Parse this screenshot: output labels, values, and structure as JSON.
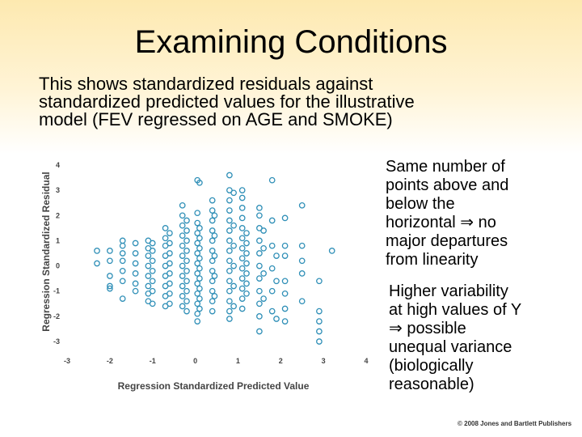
{
  "slide": {
    "title": "Examining Conditions",
    "intro_lines": [
      "This shows standardized residuals against",
      "standardized predicted values for the illustrative",
      "model (FEV regressed on AGE and SMOKE)"
    ],
    "note1_lines": [
      "Same number of",
      "points above and",
      "below the",
      "horizontal ⇒ no",
      "major departures",
      "from linearity"
    ],
    "note2_lines": [
      "Higher variability",
      "at high values of Y",
      "⇒ possible",
      "unequal variance",
      "(biologically",
      "reasonable)"
    ],
    "copyright": "© 2008 Jones and Bartlett Publishers"
  },
  "chart_data": {
    "type": "scatter",
    "xlabel": "Regression Standardized Predicted Value",
    "ylabel": "Regression Standardized Residual",
    "xlim": [
      -3,
      4
    ],
    "ylim": [
      -3,
      4
    ],
    "xticks": [
      -3,
      -2,
      -1,
      0,
      1,
      2,
      3,
      4
    ],
    "yticks": [
      -3,
      -2,
      -1,
      0,
      1,
      2,
      3,
      4
    ],
    "marker_color": "#2f8fb7",
    "points": [
      [
        -2.3,
        0.6
      ],
      [
        -2.3,
        0.1
      ],
      [
        -2.0,
        0.6
      ],
      [
        -2.0,
        0.2
      ],
      [
        -2.0,
        -0.4
      ],
      [
        -2.0,
        -0.8
      ],
      [
        -2.0,
        -0.9
      ],
      [
        -1.7,
        1.0
      ],
      [
        -1.7,
        0.8
      ],
      [
        -1.7,
        0.5
      ],
      [
        -1.7,
        0.2
      ],
      [
        -1.7,
        -0.2
      ],
      [
        -1.7,
        -0.6
      ],
      [
        -1.7,
        -1.3
      ],
      [
        -1.4,
        0.9
      ],
      [
        -1.4,
        0.5
      ],
      [
        -1.4,
        0.1
      ],
      [
        -1.4,
        -0.3
      ],
      [
        -1.4,
        -0.7
      ],
      [
        -1.4,
        -1.0
      ],
      [
        -1.1,
        1.0
      ],
      [
        -1.1,
        0.7
      ],
      [
        -1.1,
        0.4
      ],
      [
        -1.1,
        0.0
      ],
      [
        -1.1,
        -0.4
      ],
      [
        -1.1,
        -0.8
      ],
      [
        -1.1,
        -1.1
      ],
      [
        -1.1,
        -1.4
      ],
      [
        -1.0,
        0.9
      ],
      [
        -1.0,
        0.6
      ],
      [
        -1.0,
        0.2
      ],
      [
        -1.0,
        -0.2
      ],
      [
        -1.0,
        -0.6
      ],
      [
        -1.0,
        -1.0
      ],
      [
        -1.0,
        -1.5
      ],
      [
        -0.7,
        1.5
      ],
      [
        -0.7,
        1.1
      ],
      [
        -0.7,
        0.8
      ],
      [
        -0.7,
        0.4
      ],
      [
        -0.7,
        0.0
      ],
      [
        -0.7,
        -0.4
      ],
      [
        -0.7,
        -0.8
      ],
      [
        -0.7,
        -1.2
      ],
      [
        -0.7,
        -1.6
      ],
      [
        -0.6,
        1.3
      ],
      [
        -0.6,
        0.9
      ],
      [
        -0.6,
        0.5
      ],
      [
        -0.6,
        0.1
      ],
      [
        -0.6,
        -0.3
      ],
      [
        -0.6,
        -0.7
      ],
      [
        -0.6,
        -1.1
      ],
      [
        -0.6,
        -1.5
      ],
      [
        -0.3,
        2.4
      ],
      [
        -0.3,
        2.0
      ],
      [
        -0.3,
        1.6
      ],
      [
        -0.3,
        1.2
      ],
      [
        -0.3,
        0.8
      ],
      [
        -0.3,
        0.4
      ],
      [
        -0.3,
        0.0
      ],
      [
        -0.3,
        -0.4
      ],
      [
        -0.3,
        -0.8
      ],
      [
        -0.3,
        -1.2
      ],
      [
        -0.3,
        -1.6
      ],
      [
        -0.2,
        1.8
      ],
      [
        -0.2,
        1.4
      ],
      [
        -0.2,
        1.0
      ],
      [
        -0.2,
        0.6
      ],
      [
        -0.2,
        0.2
      ],
      [
        -0.2,
        -0.2
      ],
      [
        -0.2,
        -0.6
      ],
      [
        -0.2,
        -1.0
      ],
      [
        -0.2,
        -1.4
      ],
      [
        -0.2,
        -1.8
      ],
      [
        0.05,
        3.4
      ],
      [
        0.05,
        2.1
      ],
      [
        0.05,
        1.7
      ],
      [
        0.05,
        1.3
      ],
      [
        0.05,
        0.9
      ],
      [
        0.05,
        0.5
      ],
      [
        0.05,
        0.1
      ],
      [
        0.05,
        -0.3
      ],
      [
        0.05,
        -0.7
      ],
      [
        0.05,
        -1.1
      ],
      [
        0.05,
        -1.5
      ],
      [
        0.05,
        -1.9
      ],
      [
        0.05,
        -2.2
      ],
      [
        0.1,
        3.3
      ],
      [
        0.1,
        1.5
      ],
      [
        0.1,
        1.1
      ],
      [
        0.1,
        0.7
      ],
      [
        0.1,
        0.3
      ],
      [
        0.1,
        -0.1
      ],
      [
        0.1,
        -0.5
      ],
      [
        0.1,
        -0.9
      ],
      [
        0.1,
        -1.3
      ],
      [
        0.1,
        -1.7
      ],
      [
        0.4,
        2.6
      ],
      [
        0.4,
        2.2
      ],
      [
        0.4,
        1.8
      ],
      [
        0.4,
        1.4
      ],
      [
        0.4,
        1.0
      ],
      [
        0.4,
        0.6
      ],
      [
        0.4,
        0.2
      ],
      [
        0.4,
        -0.2
      ],
      [
        0.4,
        -0.6
      ],
      [
        0.4,
        -1.0
      ],
      [
        0.4,
        -1.4
      ],
      [
        0.4,
        -1.8
      ],
      [
        0.45,
        2.0
      ],
      [
        0.45,
        1.2
      ],
      [
        0.45,
        0.4
      ],
      [
        0.45,
        -0.4
      ],
      [
        0.45,
        -1.2
      ],
      [
        0.8,
        3.6
      ],
      [
        0.8,
        3.0
      ],
      [
        0.8,
        2.6
      ],
      [
        0.8,
        2.2
      ],
      [
        0.8,
        1.8
      ],
      [
        0.8,
        1.4
      ],
      [
        0.8,
        1.0
      ],
      [
        0.8,
        0.6
      ],
      [
        0.8,
        0.2
      ],
      [
        0.8,
        -0.2
      ],
      [
        0.8,
        -0.6
      ],
      [
        0.8,
        -1.0
      ],
      [
        0.8,
        -1.4
      ],
      [
        0.8,
        -1.8
      ],
      [
        0.8,
        -2.1
      ],
      [
        0.9,
        2.9
      ],
      [
        0.9,
        1.6
      ],
      [
        0.9,
        0.8
      ],
      [
        0.9,
        0.0
      ],
      [
        0.9,
        -0.8
      ],
      [
        0.9,
        -1.6
      ],
      [
        1.1,
        3.0
      ],
      [
        1.1,
        2.7
      ],
      [
        1.1,
        2.3
      ],
      [
        1.1,
        1.9
      ],
      [
        1.1,
        1.5
      ],
      [
        1.1,
        1.1
      ],
      [
        1.1,
        0.7
      ],
      [
        1.1,
        0.3
      ],
      [
        1.1,
        -0.1
      ],
      [
        1.1,
        -0.5
      ],
      [
        1.1,
        -0.9
      ],
      [
        1.1,
        -1.3
      ],
      [
        1.1,
        -1.7
      ],
      [
        1.2,
        1.3
      ],
      [
        1.2,
        0.9
      ],
      [
        1.2,
        0.5
      ],
      [
        1.2,
        0.1
      ],
      [
        1.2,
        -0.3
      ],
      [
        1.2,
        -0.7
      ],
      [
        1.2,
        -1.1
      ],
      [
        1.5,
        2.3
      ],
      [
        1.5,
        2.0
      ],
      [
        1.5,
        1.5
      ],
      [
        1.5,
        1.0
      ],
      [
        1.5,
        0.5
      ],
      [
        1.5,
        0.0
      ],
      [
        1.5,
        -0.5
      ],
      [
        1.5,
        -1.0
      ],
      [
        1.5,
        -1.5
      ],
      [
        1.5,
        -2.0
      ],
      [
        1.5,
        -2.6
      ],
      [
        1.6,
        1.4
      ],
      [
        1.6,
        0.7
      ],
      [
        1.6,
        -0.3
      ],
      [
        1.6,
        -1.3
      ],
      [
        1.8,
        3.4
      ],
      [
        1.8,
        1.8
      ],
      [
        1.8,
        0.8
      ],
      [
        1.8,
        -0.1
      ],
      [
        1.8,
        -1.0
      ],
      [
        1.8,
        -1.8
      ],
      [
        1.9,
        0.4
      ],
      [
        1.9,
        -0.6
      ],
      [
        1.9,
        -2.1
      ],
      [
        2.1,
        1.9
      ],
      [
        2.1,
        0.8
      ],
      [
        2.1,
        0.4
      ],
      [
        2.1,
        -0.6
      ],
      [
        2.1,
        -1.1
      ],
      [
        2.1,
        -1.7
      ],
      [
        2.1,
        -2.2
      ],
      [
        2.5,
        2.4
      ],
      [
        2.5,
        0.8
      ],
      [
        2.5,
        0.2
      ],
      [
        2.5,
        -0.3
      ],
      [
        2.5,
        -1.4
      ],
      [
        2.9,
        -0.6
      ],
      [
        2.9,
        -1.8
      ],
      [
        2.9,
        -2.2
      ],
      [
        2.9,
        -2.6
      ],
      [
        2.9,
        -3.0
      ],
      [
        3.2,
        0.6
      ]
    ]
  }
}
